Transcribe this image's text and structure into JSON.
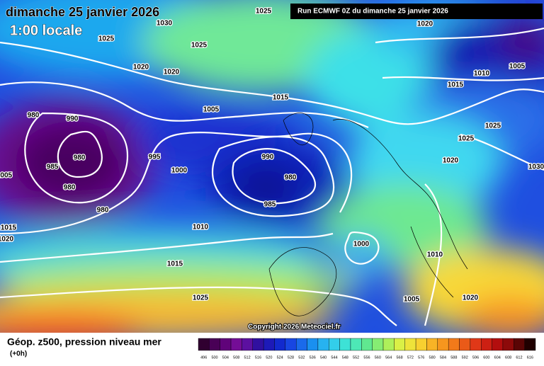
{
  "date": "dimanche 25 janvier 2026",
  "local_time": "1:00 locale",
  "run_label": "Run ECMWF 0Z du dimanche 25 janvier 2026",
  "copyright": "Copyright 2026 Meteociel.fr",
  "legend": {
    "title": "Géop. z500, pression niveau mer",
    "step": "(+0h)",
    "scale": [
      496,
      500,
      504,
      508,
      512,
      516,
      520,
      524,
      528,
      532,
      536,
      540,
      544,
      548,
      552,
      556,
      560,
      564,
      568,
      572,
      576,
      580,
      584,
      588,
      592,
      596,
      600,
      604,
      608,
      612,
      616
    ]
  },
  "isobar_labels": [
    1025,
    1030,
    1025,
    1025,
    1020,
    1020,
    1015,
    1005,
    980,
    990,
    980,
    985,
    995,
    1000,
    990,
    980,
    985,
    980,
    980,
    1005,
    1015,
    1020,
    1010,
    1015,
    1025,
    1000,
    1010,
    1005,
    1020,
    1025,
    1025,
    1020,
    1030,
    1015,
    1010,
    1005,
    1020
  ]
}
